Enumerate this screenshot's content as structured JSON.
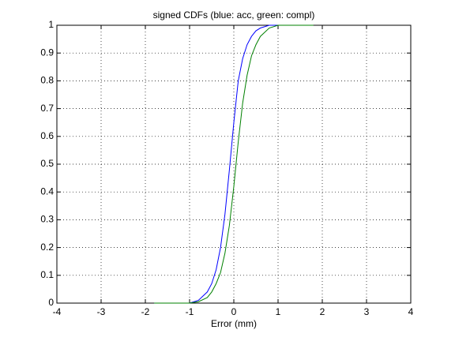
{
  "chart_data": {
    "type": "line",
    "title": "signed CDFs (blue: acc, green: compl)",
    "x_label": "Error (mm)",
    "x": [
      -1.8,
      -1.0,
      -0.8,
      -0.6,
      -0.5,
      -0.4,
      -0.3,
      -0.2,
      -0.1,
      0,
      0.1,
      0.2,
      0.3,
      0.4,
      0.5,
      0.6,
      0.8,
      1.0,
      1.8
    ],
    "series": [
      {
        "color": "#0000ff",
        "values": [
          0,
          0,
          0.01,
          0.04,
          0.07,
          0.12,
          0.2,
          0.32,
          0.48,
          0.65,
          0.8,
          0.88,
          0.93,
          0.96,
          0.98,
          0.99,
          1.0,
          1.0,
          null
        ]
      },
      {
        "color": "#008000",
        "values": [
          0,
          0,
          0.005,
          0.02,
          0.04,
          0.07,
          0.11,
          0.18,
          0.28,
          0.42,
          0.58,
          0.72,
          0.82,
          0.89,
          0.93,
          0.96,
          0.99,
          1.0,
          1.0
        ]
      }
    ],
    "xlim": [
      -4,
      4
    ],
    "ylim": [
      0,
      1
    ],
    "xticks": [
      -4,
      -3,
      -2,
      -1,
      0,
      1,
      2,
      3,
      4
    ],
    "yticks": [
      0,
      0.1,
      0.2,
      0.3,
      0.4,
      0.5,
      0.6,
      0.7,
      0.8,
      0.9,
      1
    ],
    "grid": true
  }
}
